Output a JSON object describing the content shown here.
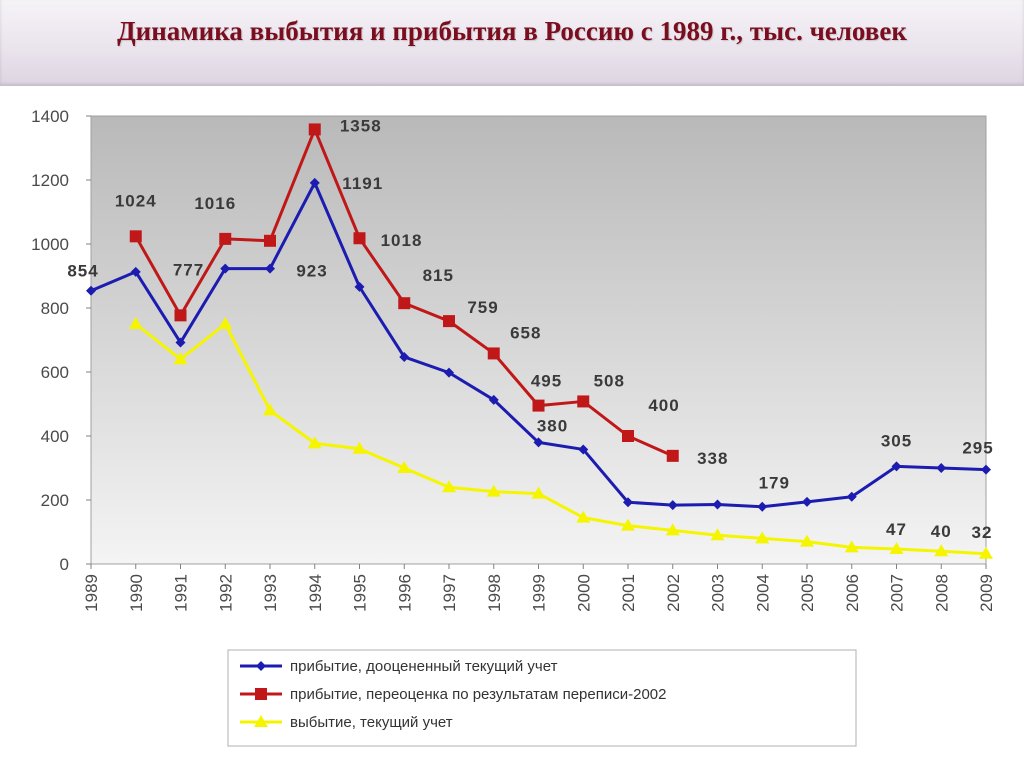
{
  "page": {
    "title": "Динамика выбытия и прибытия в Россию с 1989 г., тыс. человек"
  },
  "chart_data": {
    "type": "line",
    "title": "Динамика выбытия и прибытия в Россию с 1989 г., тыс. человек",
    "xlabel": "",
    "ylabel": "",
    "x": [
      "1989",
      "1990",
      "1991",
      "1992",
      "1993",
      "1994",
      "1995",
      "1996",
      "1997",
      "1998",
      "1999",
      "2000",
      "2001",
      "2002",
      "2003",
      "2004",
      "2005",
      "2006",
      "2007",
      "2008",
      "2009"
    ],
    "ylim": [
      0,
      1400
    ],
    "yticks": [
      0,
      200,
      400,
      600,
      800,
      1000,
      1200,
      1400
    ],
    "grid": false,
    "legend_position": "bottom",
    "series": [
      {
        "name": "прибытие, дооцененный текущий учет",
        "color": "#1c1cb0",
        "marker": "diamond",
        "values": [
          854,
          913,
          692,
          923,
          923,
          1191,
          866,
          647,
          598,
          513,
          380,
          358,
          193,
          184,
          186,
          179,
          194,
          210,
          305,
          300,
          295
        ]
      },
      {
        "name": "прибытие, переоценка по результатам переписи-2002",
        "color": "#c01818",
        "marker": "square",
        "values": [
          null,
          1024,
          777,
          1016,
          1010,
          1358,
          1018,
          815,
          759,
          658,
          495,
          508,
          400,
          338,
          null,
          null,
          null,
          null,
          null,
          null,
          null
        ]
      },
      {
        "name": "выбытие, текущий учет",
        "color": "#f5f500",
        "marker": "triangle",
        "values": [
          null,
          750,
          640,
          750,
          480,
          377,
          360,
          300,
          240,
          226,
          220,
          145,
          120,
          105,
          90,
          80,
          70,
          52,
          47,
          40,
          32
        ]
      }
    ],
    "annotations": [
      {
        "text": "854",
        "x": "1989",
        "series": 0
      },
      {
        "text": "1024",
        "x": "1990",
        "series": 1
      },
      {
        "text": "777",
        "x": "1991",
        "series": 1
      },
      {
        "text": "1016",
        "x": "1992",
        "series": 1
      },
      {
        "text": "923",
        "x": "1993",
        "series": 0
      },
      {
        "text": "1358",
        "x": "1994",
        "series": 1
      },
      {
        "text": "1191",
        "x": "1994",
        "series": 0
      },
      {
        "text": "1018",
        "x": "1995",
        "series": 1
      },
      {
        "text": "815",
        "x": "1996",
        "series": 1
      },
      {
        "text": "759",
        "x": "1997",
        "series": 1
      },
      {
        "text": "658",
        "x": "1998",
        "series": 1
      },
      {
        "text": "495",
        "x": "1999",
        "series": 1
      },
      {
        "text": "380",
        "x": "1999",
        "series": 0
      },
      {
        "text": "508",
        "x": "2000",
        "series": 1
      },
      {
        "text": "400",
        "x": "2001",
        "series": 1
      },
      {
        "text": "338",
        "x": "2002",
        "series": 1
      },
      {
        "text": "179",
        "x": "2004",
        "series": 0
      },
      {
        "text": "305",
        "x": "2007",
        "series": 0
      },
      {
        "text": "47",
        "x": "2007",
        "series": 2
      },
      {
        "text": "40",
        "x": "2008",
        "series": 2
      },
      {
        "text": "295",
        "x": "2009",
        "series": 0
      },
      {
        "text": "32",
        "x": "2009",
        "series": 2
      }
    ]
  }
}
